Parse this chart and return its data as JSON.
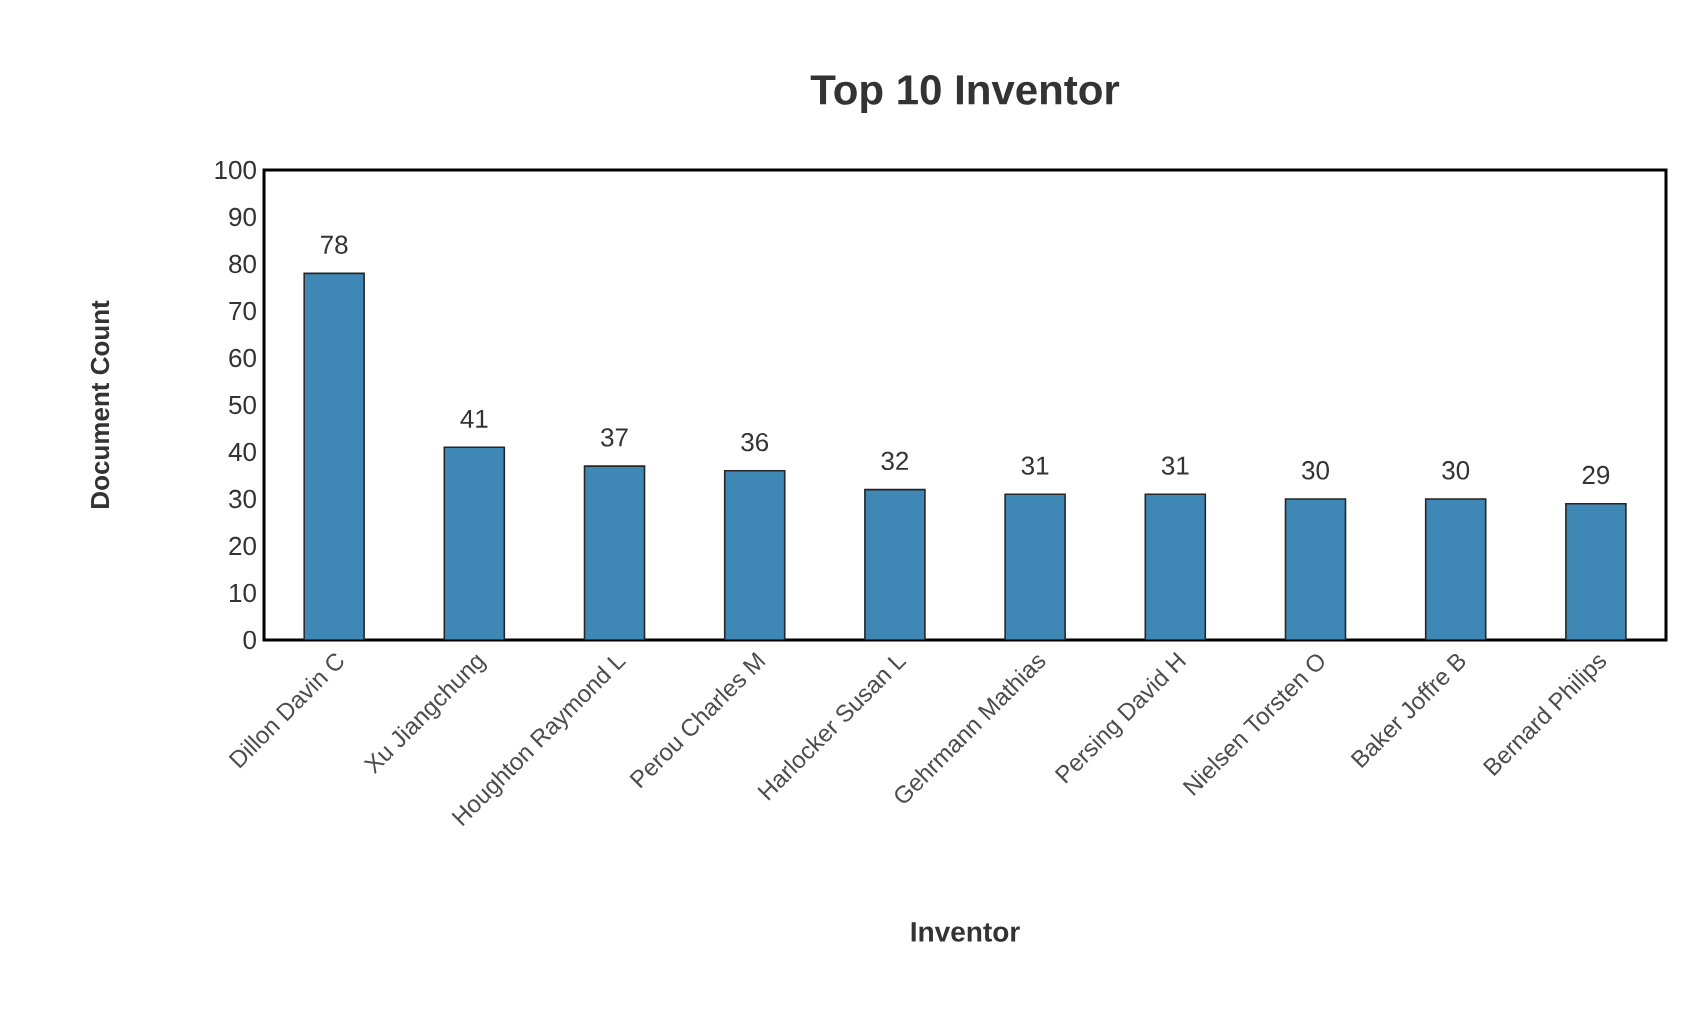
{
  "chart_data": {
    "type": "bar",
    "title": "Top 10 Inventor",
    "xlabel": "Inventor",
    "ylabel": "Document Count",
    "categories": [
      "Dillon Davin C",
      "Xu Jiangchung",
      "Houghton Raymond L",
      "Perou Charles M",
      "Harlocker Susan L",
      "Gehrmann Mathias",
      "Persing David H",
      "Nielsen Torsten O",
      "Baker Joffre B",
      "Bernard Philips"
    ],
    "values": [
      78,
      41,
      37,
      36,
      32,
      31,
      31,
      30,
      30,
      29
    ],
    "color": "#3f87b5",
    "ylim": [
      0,
      100
    ],
    "yticks": [
      0,
      10,
      20,
      30,
      40,
      50,
      60,
      70,
      80,
      90,
      100
    ],
    "data_labels": true,
    "grid": false
  }
}
